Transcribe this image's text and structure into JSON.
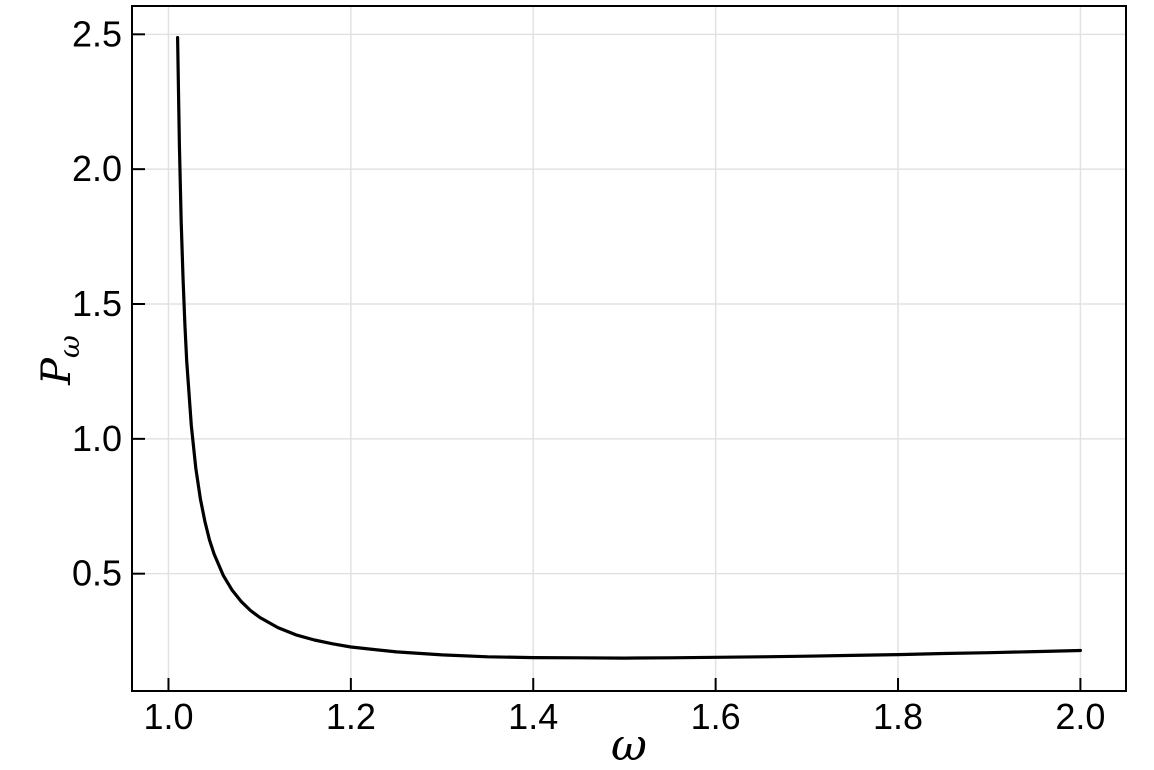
{
  "figure": {
    "background": "#ffffff"
  },
  "chart_data": {
    "type": "line",
    "title": "",
    "xlabel": "ω",
    "ylabel": "P_ω",
    "ylabel_main": "P",
    "ylabel_sub": "ω",
    "xlim": [
      0.96,
      2.05
    ],
    "ylim": [
      0.065,
      2.605
    ],
    "grid": true,
    "legend": "none",
    "xticks": {
      "values": [
        1.0,
        1.2,
        1.4,
        1.6,
        1.8,
        2.0
      ],
      "labels": [
        "1.0",
        "1.2",
        "1.4",
        "1.6",
        "1.8",
        "2.0"
      ]
    },
    "yticks": {
      "values": [
        0.5,
        1.0,
        1.5,
        2.0,
        2.5
      ],
      "labels": [
        "0.5",
        "1.0",
        "1.5",
        "2.0",
        "2.5"
      ]
    },
    "colors": {
      "line": "#000000",
      "grid": "#e2e2e2",
      "frame": "#000000",
      "tick": "#000000",
      "tick_label": "#000000",
      "background": "#ffffff"
    },
    "series": [
      {
        "name": "P_ω(ω)",
        "color": "#000000",
        "line_width": 3.2,
        "points": [
          [
            1.01,
            2.488
          ],
          [
            1.012,
            2.089
          ],
          [
            1.014,
            1.803
          ],
          [
            1.016,
            1.589
          ],
          [
            1.018,
            1.423
          ],
          [
            1.02,
            1.289
          ],
          [
            1.025,
            1.05
          ],
          [
            1.03,
            0.891
          ],
          [
            1.035,
            0.777
          ],
          [
            1.04,
            0.692
          ],
          [
            1.045,
            0.625
          ],
          [
            1.05,
            0.573
          ],
          [
            1.06,
            0.494
          ],
          [
            1.07,
            0.438
          ],
          [
            1.08,
            0.396
          ],
          [
            1.09,
            0.363
          ],
          [
            1.1,
            0.338
          ],
          [
            1.12,
            0.3
          ],
          [
            1.14,
            0.273
          ],
          [
            1.16,
            0.254
          ],
          [
            1.18,
            0.24
          ],
          [
            1.2,
            0.228
          ],
          [
            1.25,
            0.21
          ],
          [
            1.3,
            0.199
          ],
          [
            1.35,
            0.192
          ],
          [
            1.4,
            0.189
          ],
          [
            1.45,
            0.188
          ],
          [
            1.5,
            0.187
          ],
          [
            1.55,
            0.188
          ],
          [
            1.6,
            0.19
          ],
          [
            1.65,
            0.192
          ],
          [
            1.7,
            0.194
          ],
          [
            1.75,
            0.197
          ],
          [
            1.8,
            0.2
          ],
          [
            1.85,
            0.204
          ],
          [
            1.9,
            0.207
          ],
          [
            1.95,
            0.211
          ],
          [
            2.0,
            0.215
          ]
        ]
      }
    ]
  }
}
